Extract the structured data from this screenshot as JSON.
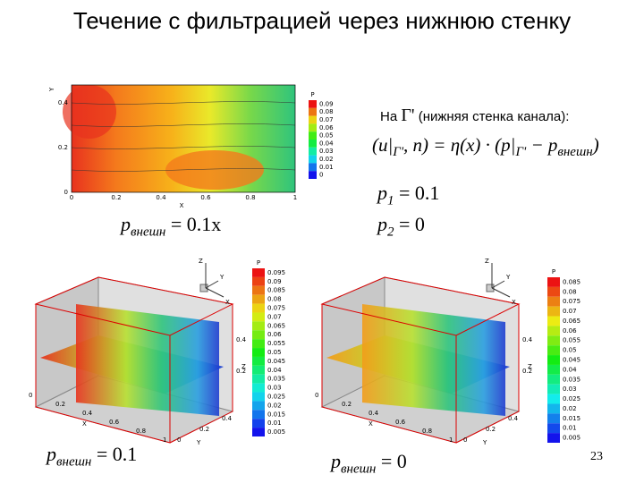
{
  "title": "Течение с фильтрацией через нижнюю стенку",
  "top_plot": {
    "x_label": "X",
    "y_label": "Y",
    "x_ticks": [
      "0",
      "0.2",
      "0.4",
      "0.6",
      "0.8",
      "1"
    ],
    "y_ticks": [
      "0",
      "0.2",
      "0.4"
    ],
    "legend_title": "P",
    "legend_labels": [
      "0.09",
      "0.08",
      "0.07",
      "0.06",
      "0.05",
      "0.04",
      "0.03",
      "0.02",
      "0.01",
      "0"
    ],
    "caption": {
      "p": "p",
      "sub": "внешн",
      "rest": "= 0.1x"
    }
  },
  "condition": {
    "prefix": "На",
    "gamma": "Γ'",
    "note": "(нижняя стенка канала):",
    "formula": {
      "a": "(u|",
      "s1": "Γ'",
      "b": ", n) = η(x) · (p|",
      "s2": "Γ'",
      "c": " − p",
      "s3": "внешн",
      "d": ")"
    },
    "p1": {
      "p": "p",
      "sub": "1",
      "rest": "= 0.1"
    },
    "p2": {
      "p": "p",
      "sub": "2",
      "rest": "= 0"
    }
  },
  "left_plot": {
    "axes": [
      "Z",
      "Y",
      "X"
    ],
    "legend_title": "P",
    "legend_labels": [
      "0.095",
      "0.09",
      "0.085",
      "0.08",
      "0.075",
      "0.07",
      "0.065",
      "0.06",
      "0.055",
      "0.05",
      "0.045",
      "0.04",
      "0.035",
      "0.03",
      "0.025",
      "0.02",
      "0.015",
      "0.01",
      "0.005"
    ],
    "z_ticks": [
      "0.4",
      "0.2"
    ],
    "z_label": "Z",
    "x_ticks": [
      "0",
      "0.2",
      "0.4",
      "0.6",
      "0.8",
      "1"
    ],
    "x_label": "X",
    "y_ticks": [
      "0",
      "0.2",
      "0.4"
    ],
    "y_label": "Y",
    "caption": {
      "p": "p",
      "sub": "внешн",
      "rest": "= 0.1"
    }
  },
  "right_plot": {
    "axes": [
      "Z",
      "Y",
      "X"
    ],
    "legend_title": "P",
    "legend_labels": [
      "0.085",
      "0.08",
      "0.075",
      "0.07",
      "0.065",
      "0.06",
      "0.055",
      "0.05",
      "0.045",
      "0.04",
      "0.035",
      "0.03",
      "0.025",
      "0.02",
      "0.015",
      "0.01",
      "0.005"
    ],
    "z_ticks": [
      "0.4",
      "0.2"
    ],
    "z_label": "Z",
    "x_ticks": [
      "0",
      "0.2",
      "0.4",
      "0.6",
      "0.8",
      "1"
    ],
    "x_label": "X",
    "y_ticks": [
      "0",
      "0.2",
      "0.4"
    ],
    "y_label": "Y",
    "caption": {
      "p": "p",
      "sub": "внешн",
      "rest": "= 0"
    }
  },
  "page_number": "23"
}
